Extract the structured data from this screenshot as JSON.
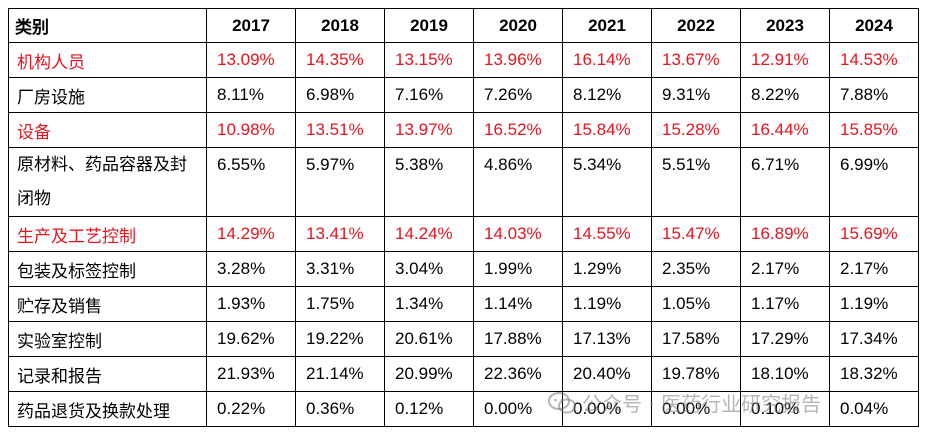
{
  "table": {
    "header_label": "类别",
    "years": [
      "2017",
      "2018",
      "2019",
      "2020",
      "2021",
      "2022",
      "2023",
      "2024"
    ],
    "rows": [
      {
        "label": "机构人员",
        "highlight": true,
        "values": [
          "13.09%",
          "14.35%",
          "13.15%",
          "13.96%",
          "16.14%",
          "13.67%",
          "12.91%",
          "14.53%"
        ]
      },
      {
        "label": "厂房设施",
        "highlight": false,
        "values": [
          "8.11%",
          "6.98%",
          "7.16%",
          "7.26%",
          "8.12%",
          "9.31%",
          "8.22%",
          "7.88%"
        ]
      },
      {
        "label": "设备",
        "highlight": true,
        "values": [
          "10.98%",
          "13.51%",
          "13.97%",
          "16.52%",
          "15.84%",
          "15.28%",
          "16.44%",
          "15.85%"
        ]
      },
      {
        "label": "原材料、药品容器及封闭物",
        "highlight": false,
        "values": [
          "6.55%",
          "5.97%",
          "5.38%",
          "4.86%",
          "5.34%",
          "5.51%",
          "6.71%",
          "6.99%"
        ]
      },
      {
        "label": "生产及工艺控制",
        "highlight": true,
        "values": [
          "14.29%",
          "13.41%",
          "14.24%",
          "14.03%",
          "14.55%",
          "15.47%",
          "16.89%",
          "15.69%"
        ]
      },
      {
        "label": "包装及标签控制",
        "highlight": false,
        "values": [
          "3.28%",
          "3.31%",
          "3.04%",
          "1.99%",
          "1.29%",
          "2.35%",
          "2.17%",
          "2.17%"
        ]
      },
      {
        "label": "贮存及销售",
        "highlight": false,
        "values": [
          "1.93%",
          "1.75%",
          "1.34%",
          "1.14%",
          "1.19%",
          "1.05%",
          "1.17%",
          "1.19%"
        ]
      },
      {
        "label": "实验室控制",
        "highlight": false,
        "values": [
          "19.62%",
          "19.22%",
          "20.61%",
          "17.88%",
          "17.13%",
          "17.58%",
          "17.29%",
          "17.34%"
        ]
      },
      {
        "label": "记录和报告",
        "highlight": false,
        "values": [
          "21.93%",
          "21.14%",
          "20.99%",
          "22.36%",
          "20.40%",
          "19.78%",
          "18.10%",
          "18.32%"
        ]
      },
      {
        "label": "药品退货及换款处理",
        "highlight": false,
        "values": [
          "0.22%",
          "0.36%",
          "0.12%",
          "0.00%",
          "0.00%",
          "0.00%",
          "0.10%",
          "0.04%"
        ]
      }
    ]
  },
  "colors": {
    "highlight": "#e8141e",
    "text": "#000000",
    "border": "#000000"
  },
  "watermark": {
    "icon": "wechat-icon",
    "text": "公众号 · 医药行业研究报告"
  }
}
